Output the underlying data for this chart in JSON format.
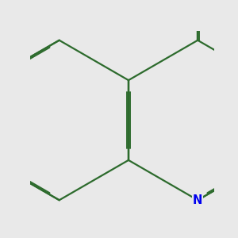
{
  "bg_color": "#e9e9e9",
  "bond_color": "#2d6b2d",
  "N_color": "#0000ee",
  "O_color": "#ee0000",
  "line_width": 1.6,
  "dbo": 0.018,
  "font_size": 10.5,
  "scale": 130,
  "ox": 48,
  "oy": 155
}
